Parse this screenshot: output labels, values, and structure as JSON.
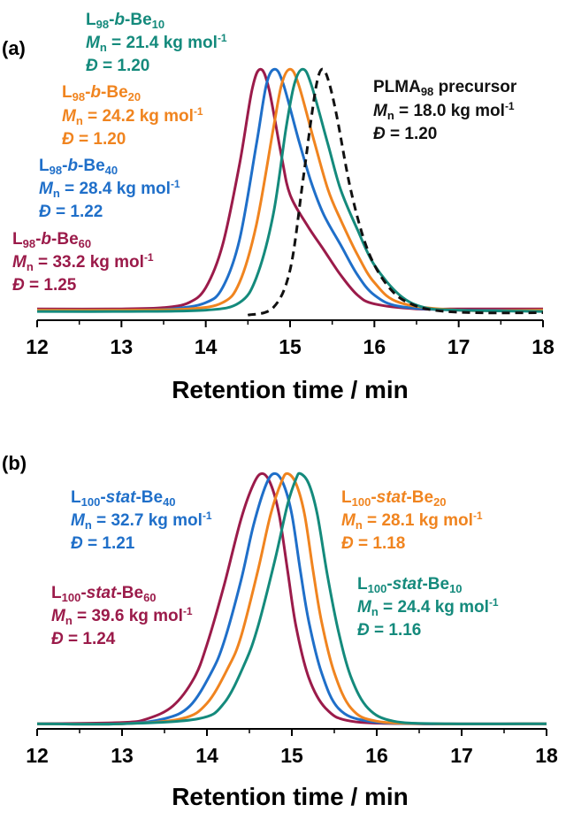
{
  "chart_data": [
    {
      "panel": "(a)",
      "type": "line",
      "xlabel": "Retention time / min",
      "xlim": [
        12,
        18
      ],
      "xticks": [
        "12",
        "13",
        "14",
        "15",
        "16",
        "17",
        "18"
      ],
      "ylim": [
        0,
        1.05
      ],
      "series": [
        {
          "color": "#9b1b4a",
          "dash": false,
          "peak_x": 14.65,
          "points": [
            [
              12.0,
              0.045
            ],
            [
              13.0,
              0.045
            ],
            [
              13.5,
              0.05
            ],
            [
              13.8,
              0.07
            ],
            [
              14.0,
              0.13
            ],
            [
              14.2,
              0.3
            ],
            [
              14.4,
              0.62
            ],
            [
              14.55,
              0.92
            ],
            [
              14.65,
              1.0
            ],
            [
              14.75,
              0.92
            ],
            [
              14.9,
              0.65
            ],
            [
              15.0,
              0.5
            ],
            [
              15.2,
              0.38
            ],
            [
              15.4,
              0.28
            ],
            [
              15.6,
              0.18
            ],
            [
              15.8,
              0.1
            ],
            [
              16.0,
              0.065
            ],
            [
              16.5,
              0.045
            ],
            [
              17.0,
              0.045
            ],
            [
              18.0,
              0.045
            ]
          ]
        },
        {
          "color": "#1f6fc9",
          "dash": false,
          "peak_x": 14.82,
          "points": [
            [
              12.0,
              0.04
            ],
            [
              13.0,
              0.04
            ],
            [
              13.6,
              0.045
            ],
            [
              14.0,
              0.07
            ],
            [
              14.2,
              0.13
            ],
            [
              14.4,
              0.32
            ],
            [
              14.6,
              0.7
            ],
            [
              14.72,
              0.94
            ],
            [
              14.82,
              1.0
            ],
            [
              14.92,
              0.94
            ],
            [
              15.1,
              0.72
            ],
            [
              15.25,
              0.55
            ],
            [
              15.4,
              0.42
            ],
            [
              15.6,
              0.3
            ],
            [
              15.8,
              0.18
            ],
            [
              16.0,
              0.1
            ],
            [
              16.3,
              0.055
            ],
            [
              17.0,
              0.04
            ],
            [
              18.0,
              0.04
            ]
          ]
        },
        {
          "color": "#f0841f",
          "dash": false,
          "peak_x": 15.0,
          "points": [
            [
              12.0,
              0.04
            ],
            [
              13.0,
              0.04
            ],
            [
              13.8,
              0.045
            ],
            [
              14.2,
              0.07
            ],
            [
              14.4,
              0.15
            ],
            [
              14.6,
              0.38
            ],
            [
              14.8,
              0.76
            ],
            [
              14.9,
              0.94
            ],
            [
              15.0,
              1.0
            ],
            [
              15.1,
              0.94
            ],
            [
              15.28,
              0.72
            ],
            [
              15.45,
              0.52
            ],
            [
              15.6,
              0.4
            ],
            [
              15.8,
              0.26
            ],
            [
              16.0,
              0.15
            ],
            [
              16.3,
              0.07
            ],
            [
              17.0,
              0.04
            ],
            [
              18.0,
              0.04
            ]
          ]
        },
        {
          "color": "#148a7c",
          "dash": false,
          "peak_x": 15.15,
          "points": [
            [
              12.0,
              0.035
            ],
            [
              13.0,
              0.035
            ],
            [
              14.0,
              0.04
            ],
            [
              14.4,
              0.07
            ],
            [
              14.6,
              0.17
            ],
            [
              14.8,
              0.42
            ],
            [
              14.95,
              0.76
            ],
            [
              15.05,
              0.94
            ],
            [
              15.15,
              1.0
            ],
            [
              15.25,
              0.94
            ],
            [
              15.45,
              0.7
            ],
            [
              15.6,
              0.52
            ],
            [
              15.8,
              0.36
            ],
            [
              16.0,
              0.22
            ],
            [
              16.3,
              0.1
            ],
            [
              16.6,
              0.05
            ],
            [
              17.0,
              0.04
            ],
            [
              18.0,
              0.035
            ]
          ]
        },
        {
          "color": "#111111",
          "dash": true,
          "peak_x": 15.38,
          "points": [
            [
              14.5,
              0.02
            ],
            [
              14.8,
              0.05
            ],
            [
              15.0,
              0.2
            ],
            [
              15.15,
              0.55
            ],
            [
              15.25,
              0.8
            ],
            [
              15.32,
              0.95
            ],
            [
              15.38,
              1.0
            ],
            [
              15.45,
              0.96
            ],
            [
              15.55,
              0.82
            ],
            [
              15.7,
              0.55
            ],
            [
              15.85,
              0.35
            ],
            [
              16.0,
              0.22
            ],
            [
              16.2,
              0.12
            ],
            [
              16.4,
              0.07
            ],
            [
              16.7,
              0.04
            ],
            [
              17.2,
              0.03
            ],
            [
              18.0,
              0.03
            ]
          ]
        }
      ]
    },
    {
      "panel": "(b)",
      "type": "line",
      "xlabel": "Retention time / min",
      "xlim": [
        12,
        18
      ],
      "xticks": [
        "12",
        "13",
        "14",
        "15",
        "16",
        "17",
        "18"
      ],
      "ylim": [
        0,
        1.05
      ],
      "series": [
        {
          "color": "#9b1b4a",
          "dash": false,
          "peak_x": 14.65,
          "points": [
            [
              12.0,
              0.02
            ],
            [
              13.0,
              0.025
            ],
            [
              13.3,
              0.04
            ],
            [
              13.6,
              0.09
            ],
            [
              13.85,
              0.2
            ],
            [
              14.0,
              0.33
            ],
            [
              14.2,
              0.56
            ],
            [
              14.4,
              0.82
            ],
            [
              14.55,
              0.96
            ],
            [
              14.65,
              1.0
            ],
            [
              14.75,
              0.96
            ],
            [
              14.85,
              0.84
            ],
            [
              14.95,
              0.62
            ],
            [
              15.05,
              0.4
            ],
            [
              15.2,
              0.2
            ],
            [
              15.4,
              0.08
            ],
            [
              15.7,
              0.03
            ],
            [
              16.5,
              0.02
            ],
            [
              18.0,
              0.02
            ]
          ]
        },
        {
          "color": "#1f6fc9",
          "dash": false,
          "peak_x": 14.8,
          "points": [
            [
              12.0,
              0.02
            ],
            [
              13.0,
              0.02
            ],
            [
              13.5,
              0.04
            ],
            [
              13.8,
              0.09
            ],
            [
              14.05,
              0.22
            ],
            [
              14.2,
              0.34
            ],
            [
              14.4,
              0.58
            ],
            [
              14.55,
              0.8
            ],
            [
              14.7,
              0.96
            ],
            [
              14.8,
              1.0
            ],
            [
              14.9,
              0.96
            ],
            [
              15.0,
              0.84
            ],
            [
              15.1,
              0.62
            ],
            [
              15.2,
              0.42
            ],
            [
              15.35,
              0.22
            ],
            [
              15.55,
              0.08
            ],
            [
              15.9,
              0.03
            ],
            [
              16.6,
              0.02
            ],
            [
              18.0,
              0.02
            ]
          ]
        },
        {
          "color": "#f0841f",
          "dash": false,
          "peak_x": 14.95,
          "points": [
            [
              12.0,
              0.02
            ],
            [
              13.0,
              0.02
            ],
            [
              13.7,
              0.04
            ],
            [
              14.0,
              0.1
            ],
            [
              14.25,
              0.24
            ],
            [
              14.4,
              0.36
            ],
            [
              14.6,
              0.62
            ],
            [
              14.75,
              0.84
            ],
            [
              14.88,
              0.97
            ],
            [
              14.95,
              1.0
            ],
            [
              15.05,
              0.96
            ],
            [
              15.15,
              0.84
            ],
            [
              15.25,
              0.62
            ],
            [
              15.35,
              0.42
            ],
            [
              15.5,
              0.22
            ],
            [
              15.7,
              0.08
            ],
            [
              16.0,
              0.03
            ],
            [
              16.7,
              0.02
            ],
            [
              18.0,
              0.02
            ]
          ]
        },
        {
          "color": "#148a7c",
          "dash": false,
          "peak_x": 15.1,
          "points": [
            [
              12.0,
              0.02
            ],
            [
              13.0,
              0.02
            ],
            [
              13.9,
              0.04
            ],
            [
              14.2,
              0.1
            ],
            [
              14.45,
              0.26
            ],
            [
              14.6,
              0.4
            ],
            [
              14.8,
              0.66
            ],
            [
              14.95,
              0.88
            ],
            [
              15.05,
              0.98
            ],
            [
              15.1,
              1.0
            ],
            [
              15.2,
              0.96
            ],
            [
              15.3,
              0.84
            ],
            [
              15.42,
              0.6
            ],
            [
              15.55,
              0.38
            ],
            [
              15.7,
              0.2
            ],
            [
              15.9,
              0.08
            ],
            [
              16.2,
              0.03
            ],
            [
              16.8,
              0.02
            ],
            [
              18.0,
              0.02
            ]
          ]
        }
      ]
    }
  ],
  "annotations": {
    "a": [
      {
        "color": "#148a7c",
        "base": "L",
        "sub": "98",
        "link": "-",
        "it": "b",
        "tail": "-Be",
        "sub2": "10",
        "mn": "21.4",
        "d": "1.20"
      },
      {
        "color": "#f0841f",
        "base": "L",
        "sub": "98",
        "link": "-",
        "it": "b",
        "tail": "-Be",
        "sub2": "20",
        "mn": "24.2",
        "d": "1.20"
      },
      {
        "color": "#1f6fc9",
        "base": "L",
        "sub": "98",
        "link": "-",
        "it": "b",
        "tail": "-Be",
        "sub2": "40",
        "mn": "28.4",
        "d": "1.22"
      },
      {
        "color": "#9b1b4a",
        "base": "L",
        "sub": "98",
        "link": "-",
        "it": "b",
        "tail": "-Be",
        "sub2": "60",
        "mn": "33.2",
        "d": "1.25"
      }
    ],
    "precursor": {
      "color": "#111111",
      "base": "PLMA",
      "sub": "98",
      "tail": " precursor",
      "mn": "18.0",
      "d": "1.20"
    },
    "b": [
      {
        "color": "#1f6fc9",
        "base": "L",
        "sub": "100",
        "link": "-",
        "it": "stat",
        "tail": "-Be",
        "sub2": "40",
        "mn": "32.7",
        "d": "1.21"
      },
      {
        "color": "#f0841f",
        "base": "L",
        "sub": "100",
        "link": "-",
        "it": "stat",
        "tail": "-Be",
        "sub2": "20",
        "mn": "28.1",
        "d": "1.18"
      },
      {
        "color": "#9b1b4a",
        "base": "L",
        "sub": "100",
        "link": "-",
        "it": "stat",
        "tail": "-Be",
        "sub2": "60",
        "mn": "39.6",
        "d": "1.24"
      },
      {
        "color": "#148a7c",
        "base": "L",
        "sub": "100",
        "link": "-",
        "it": "stat",
        "tail": "-Be",
        "sub2": "10",
        "mn": "24.4",
        "d": "1.16"
      }
    ],
    "mn_symbol": "M",
    "mn_sub": "n",
    "unit": " kg mol",
    "unit_sup": "-1",
    "d_symbol": "Đ"
  }
}
